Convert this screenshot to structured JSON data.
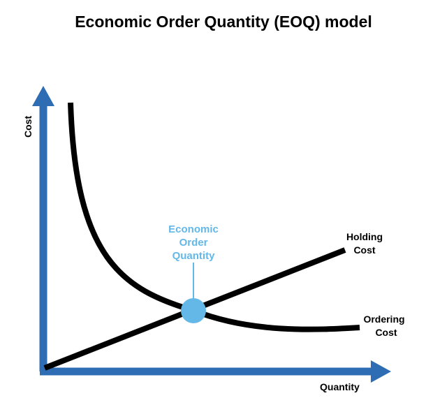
{
  "title": "Economic Order Quantity (EOQ) model",
  "axes": {
    "y_label": "Cost",
    "x_label": "Quantity"
  },
  "curves": {
    "holding_label": [
      "Holding",
      "Cost"
    ],
    "ordering_label": [
      "Ordering",
      "Cost"
    ]
  },
  "eoq_point": {
    "label": [
      "Economic",
      "Order",
      "Quantity"
    ]
  },
  "colors": {
    "axis": "#2e6db4",
    "curve": "#000000",
    "eoq_point": "#63b8e8",
    "eoq_label": "#63b8e8",
    "text": "#000000"
  }
}
